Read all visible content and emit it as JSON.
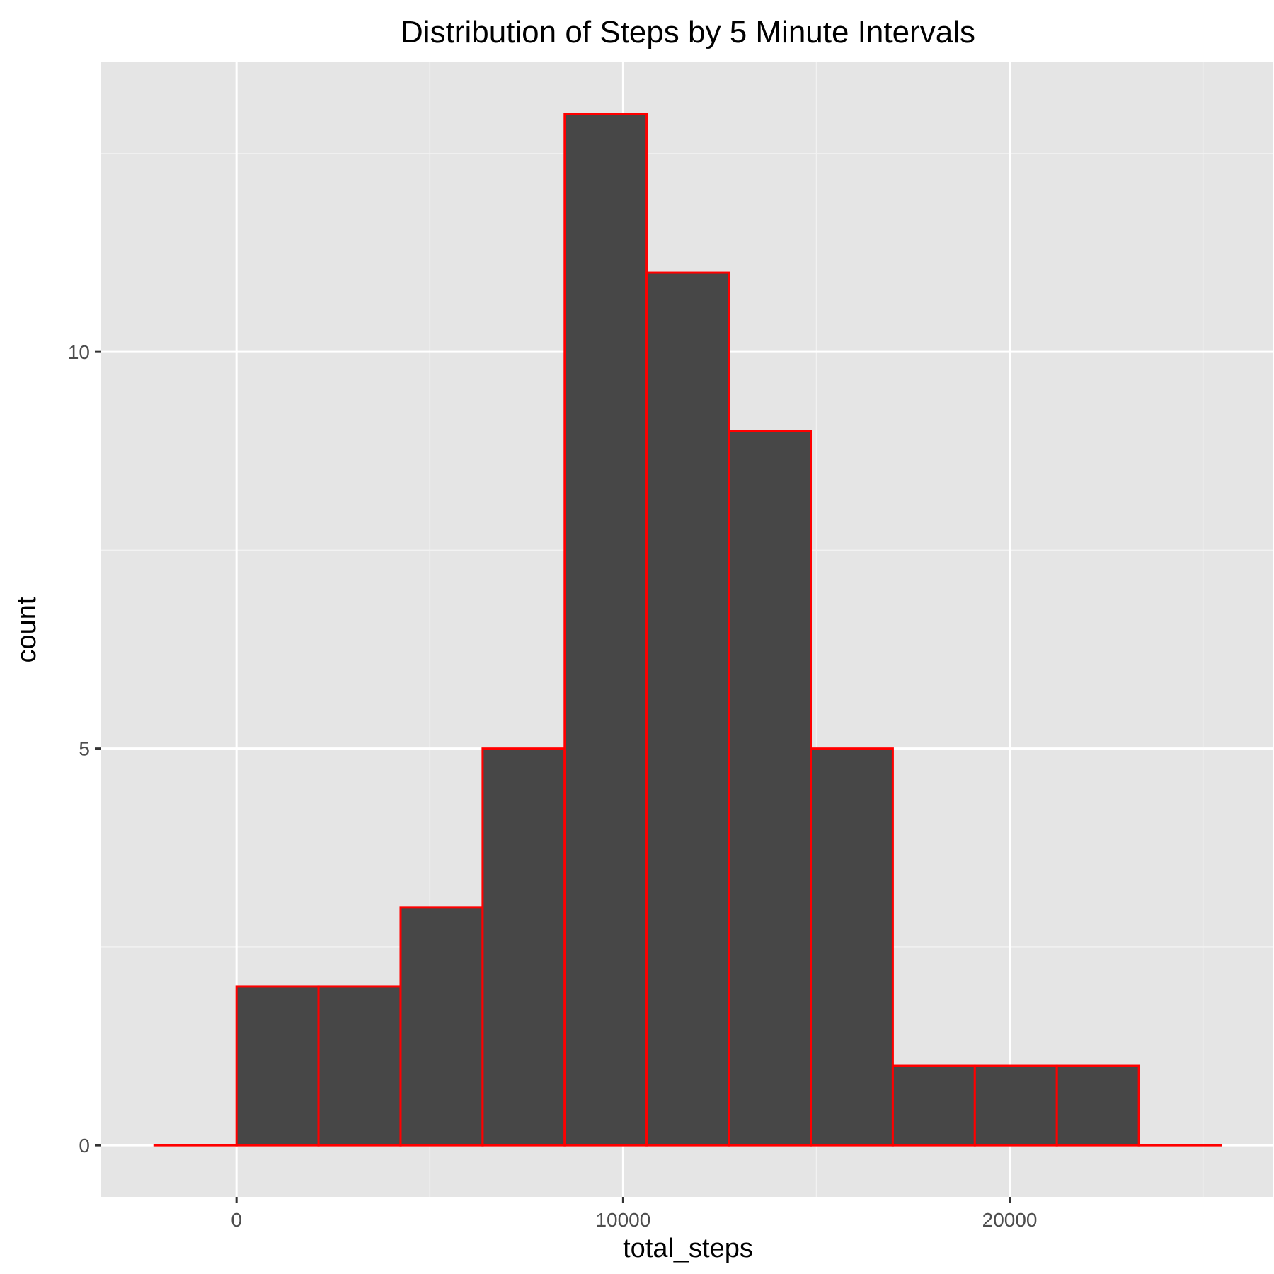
{
  "chart_data": {
    "type": "bar",
    "title": "Distribution of Steps by 5 Minute Intervals",
    "xlabel": "total_steps",
    "ylabel": "count",
    "bins": [
      {
        "start": -2122,
        "end": 0,
        "count": 0
      },
      {
        "start": 0,
        "end": 2122,
        "count": 2
      },
      {
        "start": 2122,
        "end": 4244,
        "count": 2
      },
      {
        "start": 4244,
        "end": 6366,
        "count": 3
      },
      {
        "start": 6366,
        "end": 8488,
        "count": 5
      },
      {
        "start": 8488,
        "end": 10610,
        "count": 13
      },
      {
        "start": 10610,
        "end": 12732,
        "count": 11
      },
      {
        "start": 12732,
        "end": 14854,
        "count": 9
      },
      {
        "start": 14854,
        "end": 16976,
        "count": 5
      },
      {
        "start": 16976,
        "end": 19098,
        "count": 1
      },
      {
        "start": 19098,
        "end": 21220,
        "count": 1
      },
      {
        "start": 21220,
        "end": 23342,
        "count": 1
      },
      {
        "start": 23342,
        "end": 25464,
        "count": 0
      }
    ],
    "xlim": [
      -3500,
      26800
    ],
    "ylim": [
      -0.65,
      13.65
    ],
    "x_ticks": [
      0,
      10000,
      20000
    ],
    "x_tick_labels": [
      "0",
      "10000",
      "20000"
    ],
    "x_minor": [
      5000,
      15000,
      25000
    ],
    "y_ticks": [
      0,
      5,
      10
    ],
    "y_tick_labels": [
      "0",
      "5",
      "10"
    ],
    "y_minor": [
      2.5,
      7.5,
      12.5
    ],
    "fill_color": "#474747",
    "outline_color": "#ff0000",
    "panel_color": "#e5e5e5",
    "grid": true,
    "legend": "none"
  }
}
